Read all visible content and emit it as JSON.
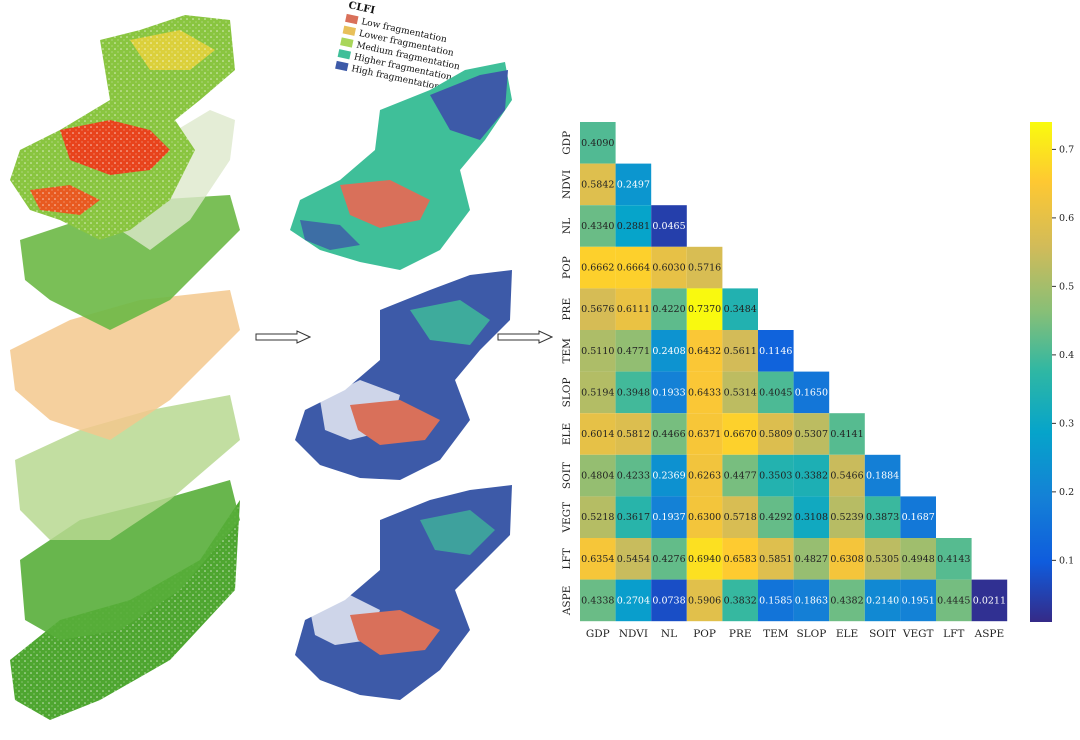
{
  "legend": {
    "title": "CLFI",
    "items": [
      {
        "label": "Low fragmentation",
        "color": "#d9705a"
      },
      {
        "label": "Lower fragmentation",
        "color": "#e8c05a"
      },
      {
        "label": "Medium fragmentation",
        "color": "#a9d65a"
      },
      {
        "label": "Higher fragmentation",
        "color": "#3fbf99"
      },
      {
        "label": "High fragmentation",
        "color": "#3d5aa8"
      }
    ]
  },
  "chart_data": {
    "type": "heatmap",
    "categories": [
      "GDP",
      "NDVI",
      "NL",
      "POP",
      "PRE",
      "TEM",
      "SLOP",
      "ELE",
      "SOIT",
      "VEGT",
      "LFT",
      "ASPE"
    ],
    "matrix": [
      [
        "0.4090"
      ],
      [
        "0.5842",
        "0.2497"
      ],
      [
        "0.4340",
        "0.2881",
        "0.0465"
      ],
      [
        "0.6662",
        "0.6664",
        "0.6030",
        "0.5716"
      ],
      [
        "0.5676",
        "0.6111",
        "0.4220",
        "0.7370",
        "0.3484"
      ],
      [
        "0.5110",
        "0.4771",
        "0.2408",
        "0.6432",
        "0.5611",
        "0.1146"
      ],
      [
        "0.5194",
        "0.3948",
        "0.1933",
        "0.6433",
        "0.5314",
        "0.4045",
        "0.1650"
      ],
      [
        "0.6014",
        "0.5812",
        "0.4466",
        "0.6371",
        "0.6670",
        "0.5809",
        "0.5307",
        "0.4141"
      ],
      [
        "0.4804",
        "0.4233",
        "0.2369",
        "0.6263",
        "0.4477",
        "0.3503",
        "0.3382",
        "0.5466",
        "0.1884"
      ],
      [
        "0.5218",
        "0.3617",
        "0.1937",
        "0.6300",
        "0.5718",
        "0.4292",
        "0.3108",
        "0.5239",
        "0.3873",
        "0.1687"
      ],
      [
        "0.6354",
        "0.5454",
        "0.4276",
        "0.6940",
        "0.6583",
        "0.5851",
        "0.4827",
        "0.6308",
        "0.5305",
        "0.4948",
        "0.4143"
      ],
      [
        "0.4338",
        "0.2704",
        "0.0738",
        "0.5906",
        "0.3832",
        "0.1585",
        "0.1863",
        "0.4382",
        "0.2140",
        "0.1951",
        "0.4445",
        "0.0211"
      ]
    ],
    "colorbar": {
      "range": [
        0.01,
        0.74
      ],
      "ticks": [
        "0.1",
        "0.2",
        "0.3",
        "0.4",
        "0.5",
        "0.6",
        "0.7"
      ],
      "colormap": "parula"
    }
  }
}
